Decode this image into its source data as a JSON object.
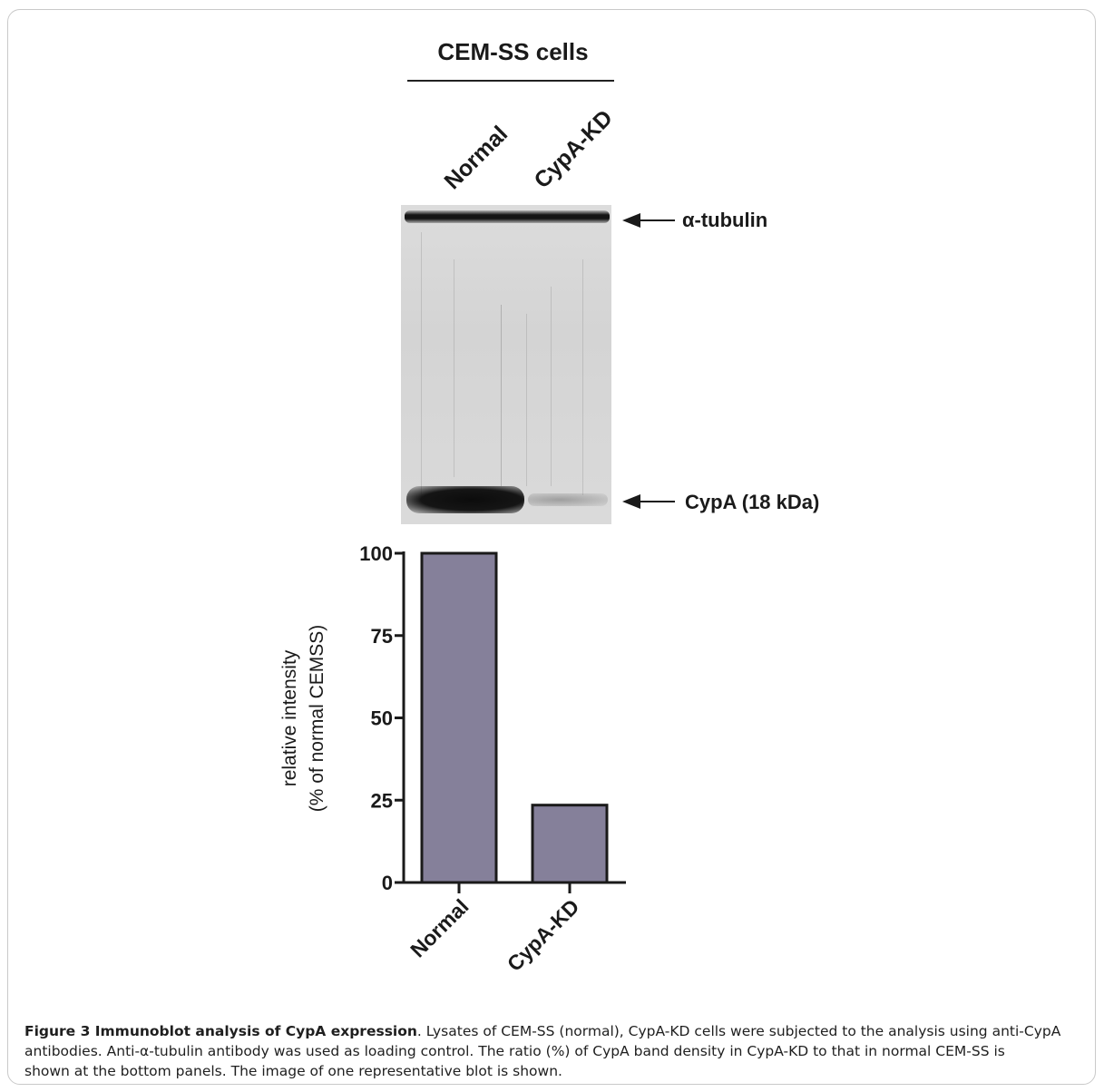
{
  "header": {
    "title": "CEM-SS cells"
  },
  "lanes": [
    "Normal",
    "CypA-KD"
  ],
  "blot": {
    "band_top_label": "α-tubulin",
    "band_bottom_label": "CypA (18 kDa)"
  },
  "chart_data": {
    "type": "bar",
    "categories": [
      "Normal",
      "CypA-KD"
    ],
    "values": [
      100,
      23.5
    ],
    "ylabel_line1": "relative intensity",
    "ylabel_line2": "(% of normal CEMSS)",
    "ylim": [
      0,
      100
    ],
    "yticks": [
      0,
      25,
      50,
      75,
      100
    ],
    "bar_color": "#85809a",
    "grid": false
  },
  "caption": {
    "lead": "Figure 3 Immunoblot analysis of CypA expression",
    "line1": ". Lysates of CEM-SS (normal), CypA-KD cells were subjected to the analysis using anti-CypA",
    "line2": "antibodies. Anti-α-tubulin antibody was used as loading control. The ratio (%) of CypA band density in CypA-KD to that in normal CEM-SS is",
    "line3": "shown at the bottom panels. The image of one representative blot is shown."
  }
}
